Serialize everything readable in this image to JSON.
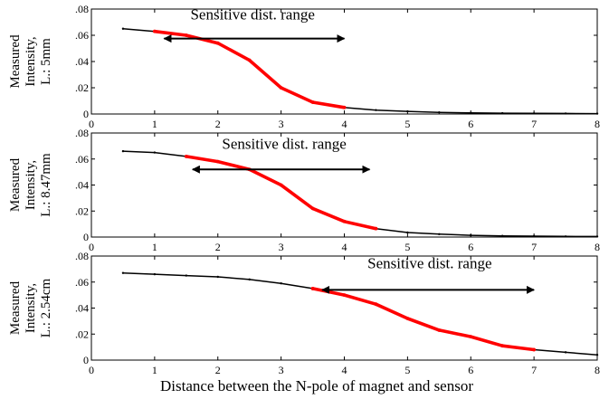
{
  "chart_data": [
    {
      "type": "line",
      "ylabel_lines": [
        "Measured",
        "Intensity,",
        "L.: 5mm"
      ],
      "xlabel": "",
      "xlim": [
        0,
        8
      ],
      "ylim": [
        0,
        0.08
      ],
      "xticks": [
        0,
        1,
        2,
        3,
        4,
        5,
        6,
        7,
        8
      ],
      "yticks": [
        0,
        0.02,
        0.04,
        0.06,
        0.08
      ],
      "ytick_labels": [
        "0",
        ".02",
        ".04",
        ".06",
        ".08"
      ],
      "series": [
        {
          "color": "#000000",
          "x": [
            0.5,
            1.0,
            1.5,
            2.0,
            2.5,
            3.0,
            3.5,
            4.0,
            4.5,
            5.0,
            5.5,
            6.0,
            6.5,
            7.0,
            7.5,
            8.0
          ],
          "y": [
            0.065,
            0.063,
            0.06,
            0.054,
            0.041,
            0.02,
            0.009,
            0.005,
            0.003,
            0.002,
            0.0012,
            0.0008,
            0.0006,
            0.0005,
            0.0004,
            0.0003
          ]
        },
        {
          "color": "#ff0000",
          "x": [
            1.0,
            1.5,
            2.0,
            2.5,
            3.0,
            3.5,
            4.0
          ],
          "y": [
            0.063,
            0.06,
            0.054,
            0.041,
            0.02,
            0.009,
            0.005
          ]
        }
      ],
      "annotation": {
        "text": "Sensitive dist. range",
        "arrow_x": [
          1.15,
          4.0
        ],
        "arrow_y": 0.0575,
        "text_x": 2.55,
        "text_y": 0.072
      }
    },
    {
      "type": "line",
      "ylabel_lines": [
        "Measured",
        "Intensity,",
        "L.: 8.47mm"
      ],
      "xlabel": "",
      "xlim": [
        0,
        8
      ],
      "ylim": [
        0,
        0.08
      ],
      "xticks": [
        0,
        1,
        2,
        3,
        4,
        5,
        6,
        7,
        8
      ],
      "yticks": [
        0,
        0.02,
        0.04,
        0.06,
        0.08
      ],
      "ytick_labels": [
        "0",
        ".02",
        ".04",
        ".06",
        ".08"
      ],
      "series": [
        {
          "color": "#000000",
          "x": [
            0.5,
            1.0,
            1.5,
            2.0,
            2.5,
            3.0,
            3.5,
            4.0,
            4.5,
            5.0,
            5.5,
            6.0,
            6.5,
            7.0,
            7.5,
            8.0
          ],
          "y": [
            0.066,
            0.065,
            0.062,
            0.058,
            0.052,
            0.04,
            0.022,
            0.012,
            0.0065,
            0.0035,
            0.0022,
            0.0013,
            0.0009,
            0.0007,
            0.0005,
            0.0004
          ]
        },
        {
          "color": "#ff0000",
          "x": [
            1.5,
            2.0,
            2.5,
            3.0,
            3.5,
            4.0,
            4.5
          ],
          "y": [
            0.062,
            0.058,
            0.052,
            0.04,
            0.022,
            0.012,
            0.0065
          ]
        }
      ],
      "annotation": {
        "text": "Sensitive dist. range",
        "arrow_x": [
          1.6,
          4.4
        ],
        "arrow_y": 0.052,
        "text_x": 3.05,
        "text_y": 0.068
      }
    },
    {
      "type": "line",
      "ylabel_lines": [
        "Measured",
        "Intensity,",
        "L.: 2.54cm"
      ],
      "xlabel": "Distance between the N-pole of magnet and sensor",
      "xlim": [
        0,
        8
      ],
      "ylim": [
        0,
        0.08
      ],
      "xticks": [
        0,
        1,
        2,
        3,
        4,
        5,
        6,
        7,
        8
      ],
      "yticks": [
        0,
        0.02,
        0.04,
        0.06,
        0.08
      ],
      "ytick_labels": [
        "0",
        ".02",
        ".04",
        ".06",
        ".08"
      ],
      "series": [
        {
          "color": "#000000",
          "x": [
            0.5,
            1.0,
            1.5,
            2.0,
            2.5,
            3.0,
            3.5,
            4.0,
            4.5,
            5.0,
            5.5,
            6.0,
            6.5,
            7.0,
            7.5,
            8.0
          ],
          "y": [
            0.067,
            0.066,
            0.065,
            0.064,
            0.062,
            0.059,
            0.055,
            0.05,
            0.043,
            0.032,
            0.023,
            0.018,
            0.011,
            0.008,
            0.006,
            0.004
          ]
        },
        {
          "color": "#ff0000",
          "x": [
            3.5,
            4.0,
            4.5,
            5.0,
            5.5,
            6.0,
            6.5,
            7.0
          ],
          "y": [
            0.055,
            0.05,
            0.043,
            0.032,
            0.023,
            0.018,
            0.011,
            0.008
          ]
        }
      ],
      "annotation": {
        "text": "Sensitive dist. range",
        "arrow_x": [
          3.65,
          7.0
        ],
        "arrow_y": 0.054,
        "text_x": 5.35,
        "text_y": 0.0705
      }
    }
  ]
}
